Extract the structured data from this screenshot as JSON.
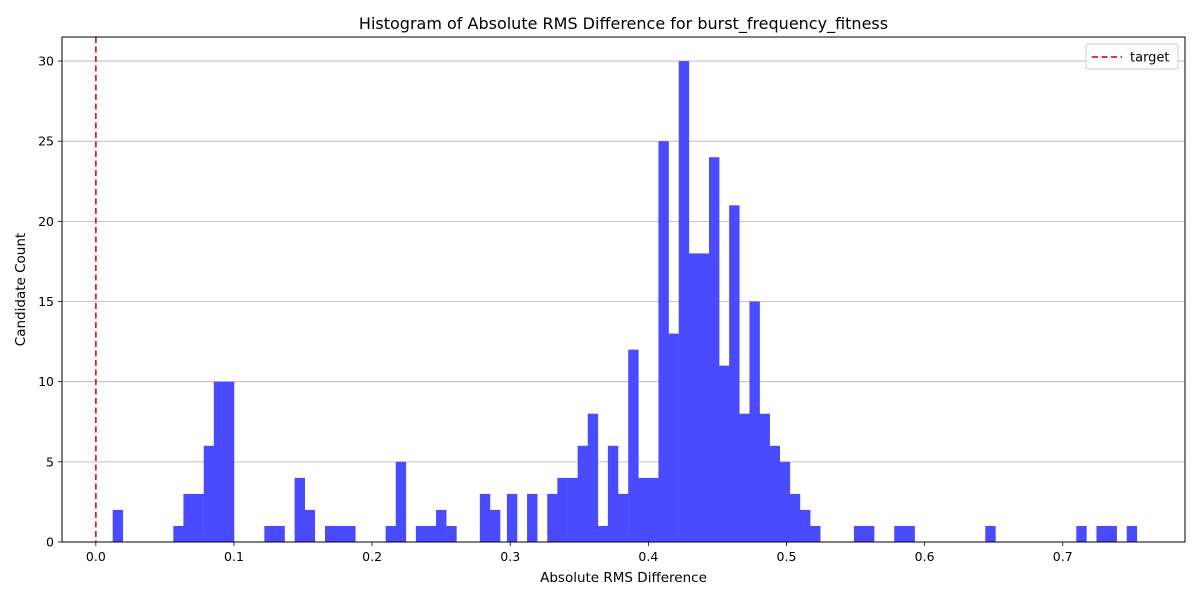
{
  "chart_data": {
    "type": "bar",
    "title": "Histogram of Absolute RMS Difference for burst_frequency_fitness",
    "xlabel": "Absolute RMS Difference",
    "ylabel": "Candidate Count",
    "xlim": [
      -0.0245,
      0.7885
    ],
    "ylim": [
      0,
      31.5
    ],
    "bin_width": 0.0073,
    "bin_starts": [
      0.0122,
      0.0195,
      0.0561,
      0.0634,
      0.0707,
      0.0781,
      0.0854,
      0.0927,
      0.122,
      0.1293,
      0.1439,
      0.1512,
      0.1659,
      0.1732,
      0.1805,
      0.2098,
      0.2171,
      0.2317,
      0.239,
      0.2463,
      0.2537,
      0.278,
      0.2853,
      0.2976,
      0.3122,
      0.3268,
      0.3341,
      0.3415,
      0.3488,
      0.3561,
      0.3634,
      0.3707,
      0.378,
      0.3854,
      0.3927,
      0.4,
      0.4073,
      0.4146,
      0.422,
      0.4293,
      0.4366,
      0.4439,
      0.4512,
      0.4585,
      0.4659,
      0.4732,
      0.4805,
      0.4878,
      0.4951,
      0.5024,
      0.5098,
      0.5171,
      0.5244,
      0.5488,
      0.5561,
      0.578,
      0.5854,
      0.6439,
      0.7098,
      0.7244,
      0.7317,
      0.7463
    ],
    "counts": [
      2,
      0,
      1,
      3,
      3,
      6,
      10,
      10,
      1,
      1,
      4,
      2,
      1,
      1,
      1,
      1,
      5,
      1,
      1,
      2,
      1,
      3,
      2,
      3,
      3,
      3,
      4,
      4,
      6,
      8,
      1,
      6,
      3,
      12,
      4,
      4,
      25,
      13,
      30,
      18,
      18,
      24,
      11,
      21,
      8,
      15,
      8,
      6,
      5,
      3,
      2,
      1,
      0,
      1,
      1,
      1,
      1,
      1,
      1,
      1,
      1,
      1
    ],
    "x_ticks": [
      0.0,
      0.1,
      0.2,
      0.3,
      0.4,
      0.5,
      0.6,
      0.7
    ],
    "x_tick_labels": [
      "0.0",
      "0.1",
      "0.2",
      "0.3",
      "0.4",
      "0.5",
      "0.6",
      "0.7"
    ],
    "y_ticks": [
      0,
      5,
      10,
      15,
      20,
      25,
      30
    ],
    "y_tick_labels": [
      "0",
      "5",
      "10",
      "15",
      "20",
      "25",
      "30"
    ],
    "grid": "y",
    "target_line": {
      "x": 0.0,
      "label": "target"
    },
    "legend_placement": "top-right",
    "bar_color": "#4a4aff",
    "target_color": "#d62020"
  }
}
